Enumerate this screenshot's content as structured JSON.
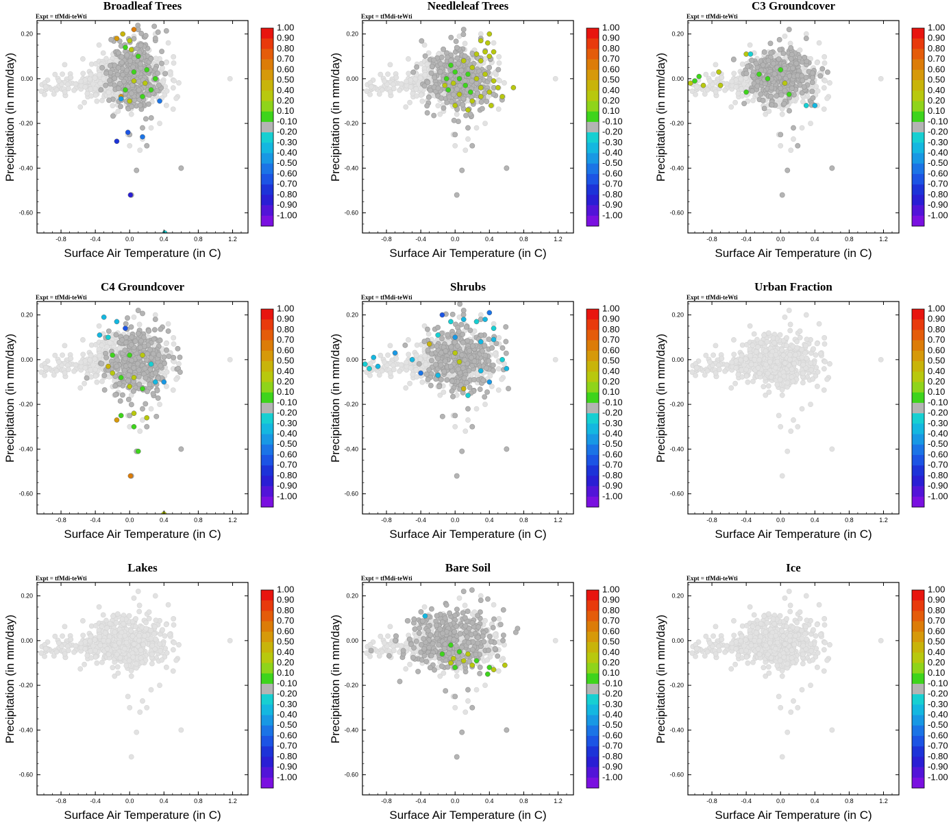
{
  "figure": {
    "expt_label": "Expt = tfMdi-teWti",
    "xlabel": "Surface Air Temperature (in C)",
    "ylabel": "Precipitation (in mm/day)",
    "xlim": [
      -1.08,
      1.38
    ],
    "ylim": [
      -0.69,
      0.26
    ],
    "xticks": [
      -0.8,
      -0.4,
      0.0,
      0.4,
      0.8,
      1.2
    ],
    "xtick_labels": [
      "-0.8",
      "-0.4",
      "0.0",
      "0.4",
      "0.8",
      "1.2"
    ],
    "yticks": [
      0.2,
      0.0,
      -0.2,
      -0.4,
      -0.6
    ],
    "ytick_labels": [
      "0.20",
      "0.00",
      "-0.20",
      "-0.40",
      "-0.60"
    ]
  },
  "colorbar": {
    "labels": [
      "1.00",
      "0.90",
      "0.80",
      "0.70",
      "0.60",
      "0.50",
      "0.40",
      "0.20",
      "0.10",
      "-0.10",
      "-0.20",
      "-0.30",
      "-0.40",
      "-0.50",
      "-0.60",
      "-0.70",
      "-0.80",
      "-0.90",
      "-1.00"
    ],
    "colors": [
      "#e8150f",
      "#e83a0c",
      "#e45c0a",
      "#dc7c08",
      "#d6990a",
      "#c8b40a",
      "#b8c80e",
      "#8fd41a",
      "#3ed41c",
      "#b4b4b4",
      "#17cfd2",
      "#14b7e0",
      "#1898e4",
      "#1b74e6",
      "#1c54e4",
      "#1d33d8",
      "#2a1ed4",
      "#5214d8",
      "#7a10e0"
    ]
  },
  "point_colors": {
    "background_cloud": "#e2e2e2",
    "neutral": "#b4b4b4"
  },
  "panels": [
    {
      "title": "Broadleaf Trees"
    },
    {
      "title": "Needleleaf Trees"
    },
    {
      "title": "C3 Groundcover"
    },
    {
      "title": "C4 Groundcover"
    },
    {
      "title": "Shrubs"
    },
    {
      "title": "Urban Fraction"
    },
    {
      "title": "Lakes"
    },
    {
      "title": "Bare Soil"
    },
    {
      "title": "Ice"
    }
  ],
  "chart_data": [
    {
      "type": "scatter",
      "title": "Broadleaf Trees",
      "xlabel": "Surface Air Temperature (in C)",
      "ylabel": "Precipitation (in mm/day)",
      "colorbar_range": [
        -1.0,
        1.0
      ],
      "neutral_band": [
        -0.1,
        0.1
      ],
      "neutral_cloud": {
        "center": [
          0.05,
          0.02
        ],
        "spread": [
          0.14,
          0.08
        ]
      },
      "highlight_points": [
        {
          "x": -0.15,
          "y": 0.18,
          "v": 0.55
        },
        {
          "x": -0.08,
          "y": 0.2,
          "v": 0.45
        },
        {
          "x": 0.05,
          "y": 0.22,
          "v": 0.6
        },
        {
          "x": 0.0,
          "y": 0.17,
          "v": 0.35
        },
        {
          "x": -0.05,
          "y": 0.14,
          "v": 0.15
        },
        {
          "x": 0.02,
          "y": 0.13,
          "v": 0.25
        },
        {
          "x": 0.1,
          "y": 0.1,
          "v": 0.15
        },
        {
          "x": 0.05,
          "y": 0.03,
          "v": 0.15
        },
        {
          "x": 0.2,
          "y": 0.04,
          "v": 0.15
        },
        {
          "x": 0.05,
          "y": -0.01,
          "v": 0.35
        },
        {
          "x": 0.18,
          "y": -0.02,
          "v": 0.25
        },
        {
          "x": 0.3,
          "y": 0.0,
          "v": 0.15
        },
        {
          "x": 0.25,
          "y": -0.05,
          "v": 0.15
        },
        {
          "x": -0.05,
          "y": -0.05,
          "v": 0.15
        },
        {
          "x": -0.1,
          "y": -0.08,
          "v": 0.55
        },
        {
          "x": 0.15,
          "y": -0.08,
          "v": 0.15
        },
        {
          "x": 0.0,
          "y": -0.1,
          "v": 0.25
        },
        {
          "x": 0.35,
          "y": -0.1,
          "v": -0.45
        },
        {
          "x": -0.1,
          "y": -0.09,
          "v": -0.35
        },
        {
          "x": -0.02,
          "y": -0.24,
          "v": -0.55
        },
        {
          "x": 0.15,
          "y": -0.26,
          "v": -0.45
        },
        {
          "x": -0.15,
          "y": -0.28,
          "v": -0.7
        },
        {
          "x": 0.01,
          "y": -0.52,
          "v": -0.75
        },
        {
          "x": 0.41,
          "y": -0.69,
          "v": -0.2
        }
      ]
    },
    {
      "type": "scatter",
      "title": "Needleleaf Trees",
      "xlabel": "Surface Air Temperature (in C)",
      "ylabel": "Precipitation (in mm/day)",
      "colorbar_range": [
        -1.0,
        1.0
      ],
      "neutral_band": [
        -0.1,
        0.1
      ],
      "neutral_cloud": {
        "center": [
          0.05,
          0.0
        ],
        "spread": [
          0.18,
          0.07
        ]
      },
      "highlight_points": [
        {
          "x": 0.4,
          "y": 0.2,
          "v": 0.35
        },
        {
          "x": 0.3,
          "y": 0.17,
          "v": 0.35
        },
        {
          "x": 0.38,
          "y": 0.16,
          "v": 0.3
        },
        {
          "x": 0.35,
          "y": 0.12,
          "v": 0.25
        },
        {
          "x": 0.45,
          "y": 0.12,
          "v": 0.3
        },
        {
          "x": 0.25,
          "y": 0.11,
          "v": 0.3
        },
        {
          "x": 0.4,
          "y": 0.1,
          "v": 0.35
        },
        {
          "x": 0.3,
          "y": 0.08,
          "v": 0.2
        },
        {
          "x": 0.1,
          "y": 0.08,
          "v": 0.2
        },
        {
          "x": -0.05,
          "y": 0.06,
          "v": 0.15
        },
        {
          "x": 0.2,
          "y": 0.05,
          "v": 0.25
        },
        {
          "x": 0.0,
          "y": 0.03,
          "v": 0.15
        },
        {
          "x": 0.15,
          "y": 0.02,
          "v": 0.15
        },
        {
          "x": 0.35,
          "y": 0.02,
          "v": 0.25
        },
        {
          "x": -0.1,
          "y": 0.0,
          "v": 0.15
        },
        {
          "x": 0.05,
          "y": 0.0,
          "v": 0.15
        },
        {
          "x": 0.25,
          "y": 0.0,
          "v": 0.2
        },
        {
          "x": 0.45,
          "y": -0.01,
          "v": 0.3
        },
        {
          "x": -0.02,
          "y": -0.02,
          "v": 0.2
        },
        {
          "x": 0.12,
          "y": -0.03,
          "v": 0.15
        },
        {
          "x": 0.3,
          "y": -0.04,
          "v": 0.25
        },
        {
          "x": 0.5,
          "y": -0.04,
          "v": 0.3
        },
        {
          "x": 0.68,
          "y": -0.04,
          "v": 0.3
        },
        {
          "x": -0.08,
          "y": -0.05,
          "v": 0.15
        },
        {
          "x": 0.18,
          "y": -0.06,
          "v": 0.15
        },
        {
          "x": 0.4,
          "y": -0.06,
          "v": 0.35
        },
        {
          "x": 0.05,
          "y": -0.07,
          "v": 0.2
        },
        {
          "x": 0.3,
          "y": -0.08,
          "v": 0.3
        },
        {
          "x": 0.2,
          "y": -0.1,
          "v": 0.25
        },
        {
          "x": 0.55,
          "y": -0.08,
          "v": 0.3
        },
        {
          "x": 0.42,
          "y": -0.12,
          "v": 0.3
        },
        {
          "x": 0.0,
          "y": -0.12,
          "v": 0.2
        },
        {
          "x": 0.15,
          "y": -0.14,
          "v": 0.35
        },
        {
          "x": -0.12,
          "y": -0.03,
          "v": 0.25
        }
      ]
    },
    {
      "type": "scatter",
      "title": "C3 Groundcover",
      "xlabel": "Surface Air Temperature (in C)",
      "ylabel": "Precipitation (in mm/day)",
      "colorbar_range": [
        -1.0,
        1.0
      ],
      "neutral_band": [
        -0.1,
        0.1
      ],
      "neutral_cloud": {
        "center": [
          0.0,
          0.01
        ],
        "spread": [
          0.2,
          0.06
        ]
      },
      "highlight_points": [
        {
          "x": -0.4,
          "y": 0.11,
          "v": 0.25
        },
        {
          "x": -0.35,
          "y": 0.11,
          "v": -0.2
        },
        {
          "x": -0.72,
          "y": 0.03,
          "v": 0.3
        },
        {
          "x": -1.05,
          "y": -0.02,
          "v": 0.2
        },
        {
          "x": -1.0,
          "y": -0.01,
          "v": 0.15
        },
        {
          "x": -0.95,
          "y": 0.01,
          "v": 0.15
        },
        {
          "x": -0.9,
          "y": -0.03,
          "v": 0.2
        },
        {
          "x": -0.7,
          "y": -0.03,
          "v": 0.2
        },
        {
          "x": -0.25,
          "y": 0.02,
          "v": 0.15
        },
        {
          "x": 0.0,
          "y": 0.04,
          "v": 0.15
        },
        {
          "x": -0.15,
          "y": 0.0,
          "v": 0.15
        },
        {
          "x": 0.05,
          "y": -0.02,
          "v": 0.2
        },
        {
          "x": -0.4,
          "y": -0.06,
          "v": 0.15
        },
        {
          "x": 0.1,
          "y": -0.07,
          "v": 0.15
        },
        {
          "x": 0.3,
          "y": -0.12,
          "v": -0.2
        },
        {
          "x": 0.4,
          "y": -0.12,
          "v": -0.3
        }
      ]
    },
    {
      "type": "scatter",
      "title": "C4 Groundcover",
      "xlabel": "Surface Air Temperature (in C)",
      "ylabel": "Precipitation (in mm/day)",
      "colorbar_range": [
        -1.0,
        1.0
      ],
      "neutral_band": [
        -0.1,
        0.1
      ],
      "neutral_cloud": {
        "center": [
          0.1,
          -0.01
        ],
        "spread": [
          0.18,
          0.08
        ]
      },
      "highlight_points": [
        {
          "x": -0.3,
          "y": 0.19,
          "v": -0.25
        },
        {
          "x": -0.15,
          "y": 0.17,
          "v": -0.3
        },
        {
          "x": -0.05,
          "y": 0.14,
          "v": -0.6
        },
        {
          "x": -0.35,
          "y": 0.11,
          "v": -0.3
        },
        {
          "x": -0.25,
          "y": 0.1,
          "v": -0.2
        },
        {
          "x": -0.2,
          "y": 0.02,
          "v": 0.15
        },
        {
          "x": 0.0,
          "y": 0.02,
          "v": 0.15
        },
        {
          "x": 0.15,
          "y": 0.02,
          "v": 0.25
        },
        {
          "x": 0.25,
          "y": -0.02,
          "v": -0.2
        },
        {
          "x": -0.25,
          "y": -0.03,
          "v": 0.45
        },
        {
          "x": -0.2,
          "y": -0.06,
          "v": 0.3
        },
        {
          "x": -0.1,
          "y": -0.08,
          "v": 0.15
        },
        {
          "x": 0.05,
          "y": -0.08,
          "v": 0.25
        },
        {
          "x": 0.3,
          "y": -0.1,
          "v": -0.3
        },
        {
          "x": 0.4,
          "y": -0.1,
          "v": -0.35
        },
        {
          "x": 0.0,
          "y": -0.12,
          "v": 0.2
        },
        {
          "x": 0.15,
          "y": -0.13,
          "v": 0.15
        },
        {
          "x": 0.05,
          "y": -0.24,
          "v": 0.35
        },
        {
          "x": -0.1,
          "y": -0.25,
          "v": 0.15
        },
        {
          "x": 0.2,
          "y": -0.26,
          "v": 0.35
        },
        {
          "x": -0.15,
          "y": -0.27,
          "v": 0.55
        },
        {
          "x": 0.05,
          "y": -0.3,
          "v": 0.15
        },
        {
          "x": 0.1,
          "y": -0.41,
          "v": 0.15
        },
        {
          "x": 0.01,
          "y": -0.52,
          "v": 0.65
        },
        {
          "x": 0.4,
          "y": -0.69,
          "v": 0.2
        }
      ]
    },
    {
      "type": "scatter",
      "title": "Shrubs",
      "xlabel": "Surface Air Temperature (in C)",
      "ylabel": "Precipitation (in mm/day)",
      "colorbar_range": [
        -1.0,
        1.0
      ],
      "neutral_band": [
        -0.1,
        0.1
      ],
      "neutral_cloud": {
        "center": [
          0.05,
          0.0
        ],
        "spread": [
          0.2,
          0.07
        ]
      },
      "highlight_points": [
        {
          "x": -0.15,
          "y": 0.2,
          "v": -0.6
        },
        {
          "x": -0.05,
          "y": 0.17,
          "v": -0.2
        },
        {
          "x": 0.1,
          "y": 0.18,
          "v": -0.3
        },
        {
          "x": 0.25,
          "y": 0.17,
          "v": -0.2
        },
        {
          "x": 0.4,
          "y": 0.21,
          "v": -0.45
        },
        {
          "x": 0.35,
          "y": 0.18,
          "v": -0.3
        },
        {
          "x": 0.45,
          "y": 0.14,
          "v": -0.2
        },
        {
          "x": -0.2,
          "y": 0.11,
          "v": -0.2
        },
        {
          "x": 0.0,
          "y": 0.1,
          "v": -0.35
        },
        {
          "x": -0.3,
          "y": 0.07,
          "v": 0.4
        },
        {
          "x": 0.3,
          "y": 0.08,
          "v": -0.3
        },
        {
          "x": 0.45,
          "y": 0.09,
          "v": -0.25
        },
        {
          "x": -1.05,
          "y": -0.02,
          "v": -0.2
        },
        {
          "x": -0.95,
          "y": 0.01,
          "v": -0.25
        },
        {
          "x": -1.0,
          "y": -0.04,
          "v": -0.2
        },
        {
          "x": -0.9,
          "y": -0.03,
          "v": -0.3
        },
        {
          "x": -0.7,
          "y": 0.03,
          "v": -0.4
        },
        {
          "x": -0.5,
          "y": 0.0,
          "v": -0.25
        },
        {
          "x": -0.4,
          "y": -0.06,
          "v": -0.5
        },
        {
          "x": 0.0,
          "y": 0.03,
          "v": 0.35
        },
        {
          "x": 0.05,
          "y": -0.01,
          "v": 0.2
        },
        {
          "x": -0.2,
          "y": -0.07,
          "v": -0.3
        },
        {
          "x": 0.3,
          "y": -0.05,
          "v": -0.3
        },
        {
          "x": 0.55,
          "y": 0.0,
          "v": -0.2
        },
        {
          "x": 0.6,
          "y": -0.04,
          "v": -0.3
        },
        {
          "x": 0.4,
          "y": -0.1,
          "v": -0.35
        },
        {
          "x": 0.1,
          "y": -0.13,
          "v": 0.45
        },
        {
          "x": 0.15,
          "y": -0.16,
          "v": -0.2
        }
      ]
    },
    {
      "type": "scatter",
      "title": "Urban Fraction",
      "xlabel": "Surface Air Temperature (in C)",
      "ylabel": "Precipitation (in mm/day)",
      "colorbar_range": [
        -1.0,
        1.0
      ],
      "neutral_band": [
        -0.1,
        0.1
      ],
      "neutral_cloud": null,
      "highlight_points": []
    },
    {
      "type": "scatter",
      "title": "Lakes",
      "xlabel": "Surface Air Temperature (in C)",
      "ylabel": "Precipitation (in mm/day)",
      "colorbar_range": [
        -1.0,
        1.0
      ],
      "neutral_band": [
        -0.1,
        0.1
      ],
      "neutral_cloud": null,
      "highlight_points": []
    },
    {
      "type": "scatter",
      "title": "Bare Soil",
      "xlabel": "Surface Air Temperature (in C)",
      "ylabel": "Precipitation (in mm/day)",
      "colorbar_range": [
        -1.0,
        1.0
      ],
      "neutral_band": [
        -0.1,
        0.1
      ],
      "neutral_cloud": {
        "center": [
          -0.05,
          0.0
        ],
        "spread": [
          0.24,
          0.07
        ]
      },
      "highlight_points": [
        {
          "x": -0.35,
          "y": 0.11,
          "v": -0.3
        },
        {
          "x": -0.05,
          "y": -0.02,
          "v": 0.15
        },
        {
          "x": -0.15,
          "y": -0.06,
          "v": 0.15
        },
        {
          "x": 0.05,
          "y": -0.05,
          "v": 0.15
        },
        {
          "x": 0.15,
          "y": -0.06,
          "v": 0.2
        },
        {
          "x": -0.02,
          "y": -0.08,
          "v": 0.25
        },
        {
          "x": 0.1,
          "y": -0.09,
          "v": 0.2
        },
        {
          "x": 0.25,
          "y": -0.09,
          "v": 0.15
        },
        {
          "x": -0.05,
          "y": -0.1,
          "v": 0.35
        },
        {
          "x": 0.2,
          "y": -0.11,
          "v": 0.25
        },
        {
          "x": 0.0,
          "y": -0.12,
          "v": 0.15
        },
        {
          "x": 0.4,
          "y": -0.12,
          "v": 0.15
        },
        {
          "x": 0.45,
          "y": -0.13,
          "v": 0.2
        },
        {
          "x": 0.58,
          "y": -0.11,
          "v": 0.35
        },
        {
          "x": 0.38,
          "y": -0.15,
          "v": 0.15
        }
      ]
    },
    {
      "type": "scatter",
      "title": "Ice",
      "xlabel": "Surface Air Temperature (in C)",
      "ylabel": "Precipitation (in mm/day)",
      "colorbar_range": [
        -1.0,
        1.0
      ],
      "neutral_band": [
        -0.1,
        0.1
      ],
      "neutral_cloud": null,
      "highlight_points": []
    }
  ]
}
